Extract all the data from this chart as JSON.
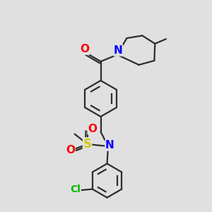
{
  "bg_color": "#e0e0e0",
  "bond_color": "#2d2d2d",
  "bond_width": 1.6,
  "atom_colors": {
    "N": "#0000ff",
    "O": "#ff0000",
    "S": "#cccc00",
    "Cl": "#00bb00",
    "C": "#2d2d2d"
  },
  "font_size": 9
}
